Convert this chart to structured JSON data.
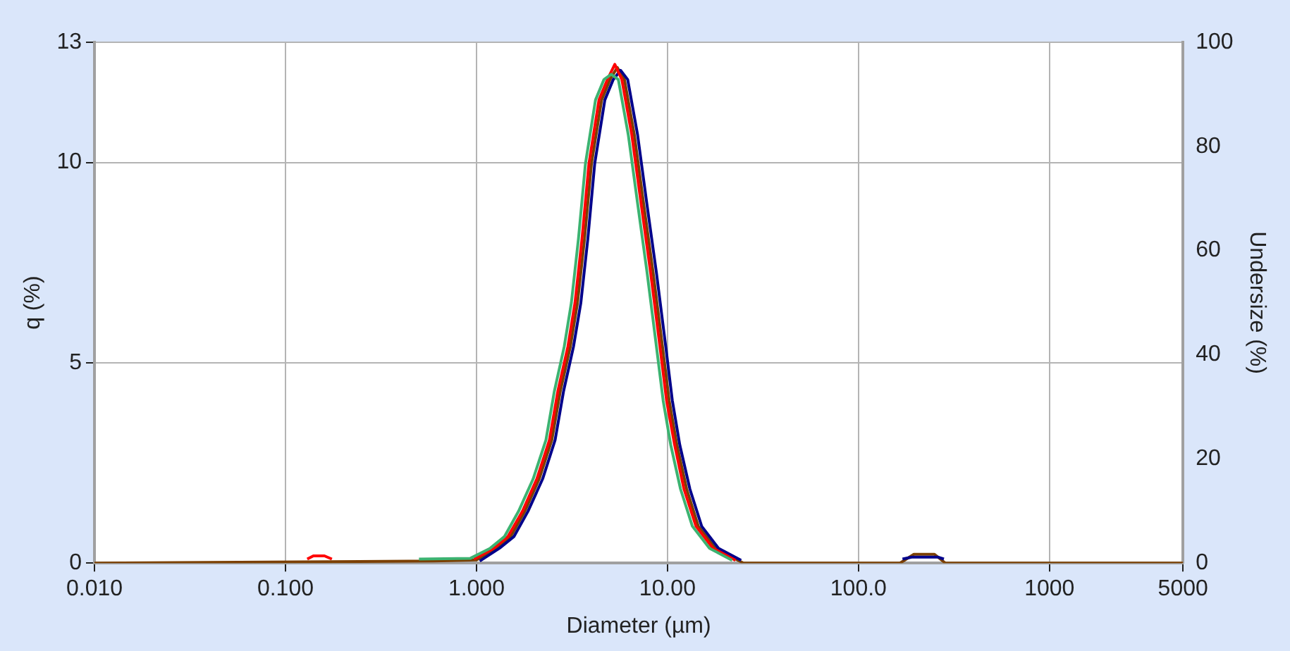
{
  "chart_data": {
    "type": "line",
    "xlabel": "Diameter (µm)",
    "ylabel": "q (%)",
    "y2label": "Undersize (%)",
    "log": "x",
    "grid": true,
    "legend": false,
    "marker": "none",
    "line_style": "solid",
    "xlim": [
      0.01,
      5000
    ],
    "xticks": [
      {
        "value": 0.01,
        "label": "0.010"
      },
      {
        "value": 0.1,
        "label": "0.100"
      },
      {
        "value": 1,
        "label": "1.000"
      },
      {
        "value": 10,
        "label": "10.00"
      },
      {
        "value": 100,
        "label": "100.0"
      },
      1000,
      5000
    ],
    "ylim": [
      0,
      13
    ],
    "yticks": [
      0,
      5,
      10,
      13
    ],
    "y2lim": [
      0,
      100
    ],
    "y2ticks": [
      0,
      20,
      40,
      60,
      80,
      100
    ],
    "series": [
      {
        "color": "#3cb371",
        "x": [
          0.5,
          0.93,
          1.18,
          1.4,
          1.66,
          1.98,
          2.31,
          2.56,
          2.88,
          3.14,
          3.42,
          3.72,
          4.2,
          4.65,
          5.08,
          5.53,
          6.23,
          6.98,
          7.81,
          8.74,
          9.49,
          10.4,
          11.7,
          13.5,
          16.6,
          21.8
        ],
        "values": [
          0.1,
          0.12,
          0.37,
          0.66,
          1.29,
          2.1,
          3.07,
          4.3,
          5.4,
          6.5,
          8.1,
          9.97,
          11.56,
          12.07,
          12.2,
          12.07,
          10.7,
          8.97,
          7.27,
          5.43,
          4.06,
          2.95,
          1.85,
          0.92,
          0.37,
          0.07
        ]
      },
      {
        "color": "#ff0000",
        "x": [
          0.13,
          0.14,
          0.16,
          0.175,
          0.5,
          0.97,
          1.23,
          1.46,
          1.74,
          2.07,
          2.41,
          2.67,
          3.01,
          3.28,
          3.57,
          3.88,
          4.38,
          4.85,
          5.3,
          5.77,
          6.5,
          7.28,
          8.15,
          9.12,
          9.89,
          10.9,
          12.2,
          14.1,
          17.3,
          22.7
        ],
        "values": [
          0.1,
          0.18,
          0.18,
          0.1,
          null,
          0.1,
          0.37,
          0.66,
          1.29,
          2.1,
          3.07,
          4.3,
          5.4,
          6.5,
          8.1,
          9.97,
          11.56,
          12.07,
          12.45,
          12.07,
          10.7,
          8.97,
          7.27,
          5.43,
          4.06,
          2.95,
          1.85,
          0.92,
          0.37,
          0.07
        ]
      },
      {
        "color": "#00008b",
        "x": [
          1.04,
          1.32,
          1.57,
          1.86,
          2.22,
          2.58,
          2.86,
          3.22,
          3.52,
          3.83,
          4.16,
          4.7,
          5.2,
          5.68,
          6.19,
          6.97,
          7.8,
          8.74,
          9.78,
          10.6,
          11.6,
          13.1,
          15.1,
          18.5,
          24.3,
          100,
          170,
          190,
          260,
          280
        ],
        "values": [
          0.05,
          0.37,
          0.66,
          1.29,
          2.1,
          3.07,
          4.3,
          5.4,
          6.5,
          8.1,
          9.97,
          11.56,
          12.07,
          12.3,
          12.07,
          10.7,
          8.97,
          7.27,
          5.43,
          4.06,
          2.95,
          1.85,
          0.92,
          0.37,
          0.07,
          null,
          0.1,
          0.15,
          0.15,
          0.1
        ]
      },
      {
        "color": "#7b3f00",
        "x": [
          0.01,
          0.6,
          1.0,
          1.27,
          1.51,
          1.79,
          2.13,
          2.48,
          2.75,
          3.1,
          3.38,
          3.68,
          4.0,
          4.52,
          5.0,
          5.46,
          5.95,
          6.7,
          7.5,
          8.4,
          9.4,
          10.2,
          11.2,
          12.6,
          14.5,
          17.8,
          23.4,
          25,
          165,
          195,
          250,
          285,
          5000
        ],
        "values": [
          0,
          0.05,
          0.08,
          0.37,
          0.66,
          1.29,
          2.1,
          3.07,
          4.3,
          5.4,
          6.5,
          8.1,
          9.97,
          11.56,
          12.07,
          12.37,
          12.07,
          10.7,
          8.97,
          7.27,
          5.43,
          4.06,
          2.95,
          1.85,
          0.92,
          0.37,
          0.07,
          0,
          0,
          0.22,
          0.22,
          0,
          0
        ]
      }
    ]
  }
}
